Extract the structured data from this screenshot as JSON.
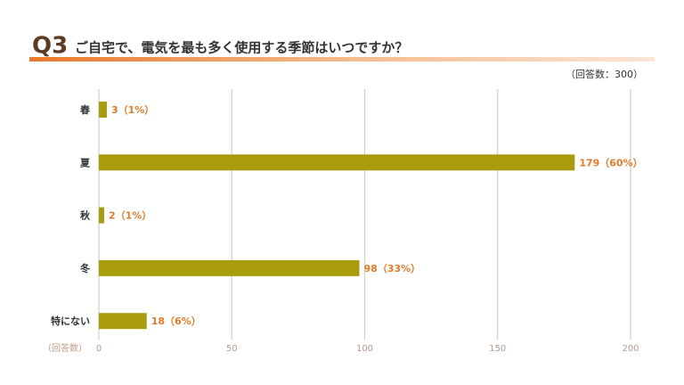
{
  "chart_data": {
    "type": "barh",
    "question_number": "Q3",
    "title": "ご自宅で、電気を最も多く使用する季節はいつですか？",
    "subtitle": "（回答数：300）",
    "x_axis_label": "（回答数）",
    "categories": [
      "春",
      "夏",
      "秋",
      "冬",
      "特にない"
    ],
    "values": [
      3,
      179,
      2,
      98,
      18
    ],
    "value_labels": [
      "3（1%）",
      "179（60%）",
      "2（1%）",
      "98（33%）",
      "18（6%）"
    ],
    "color": "#a89c0e",
    "xlim": [
      0,
      200
    ],
    "xticks": [
      0,
      50,
      100,
      150,
      200
    ],
    "grid": true
  }
}
